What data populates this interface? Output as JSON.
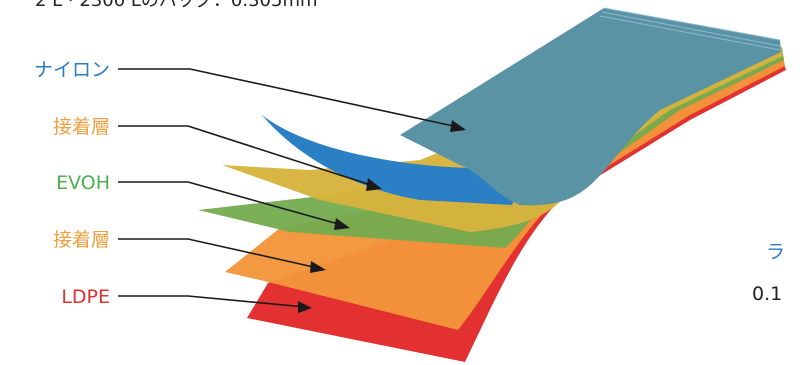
{
  "header_text": "2 L · 2300 Lのバッグ：0.305mm",
  "side_text_top": "ラ",
  "side_text_bottom": "0.1",
  "colors": {
    "nylon": "#2b7bbf",
    "nylon_fill": "#5a93a3",
    "adhesive": "#f0a040",
    "adhesive_fill": "#d8b43a",
    "evoh": "#4caf50",
    "evoh_fill": "#7ea64a",
    "adhesive2_fill": "#f09438",
    "ldpe": "#e03030",
    "pointer": "#1a1a1a"
  },
  "layers": [
    {
      "key": "nylon",
      "label": "ナイロン",
      "label_color": "#2b7bbf"
    },
    {
      "key": "adhesive_top",
      "label": "接着層",
      "label_color": "#f0a040"
    },
    {
      "key": "evoh",
      "label": "EVOH",
      "label_color": "#4caf50"
    },
    {
      "key": "adhesive_bottom",
      "label": "接着層",
      "label_color": "#f0a040"
    },
    {
      "key": "ldpe",
      "label": "LDPE",
      "label_color": "#e03030"
    }
  ]
}
